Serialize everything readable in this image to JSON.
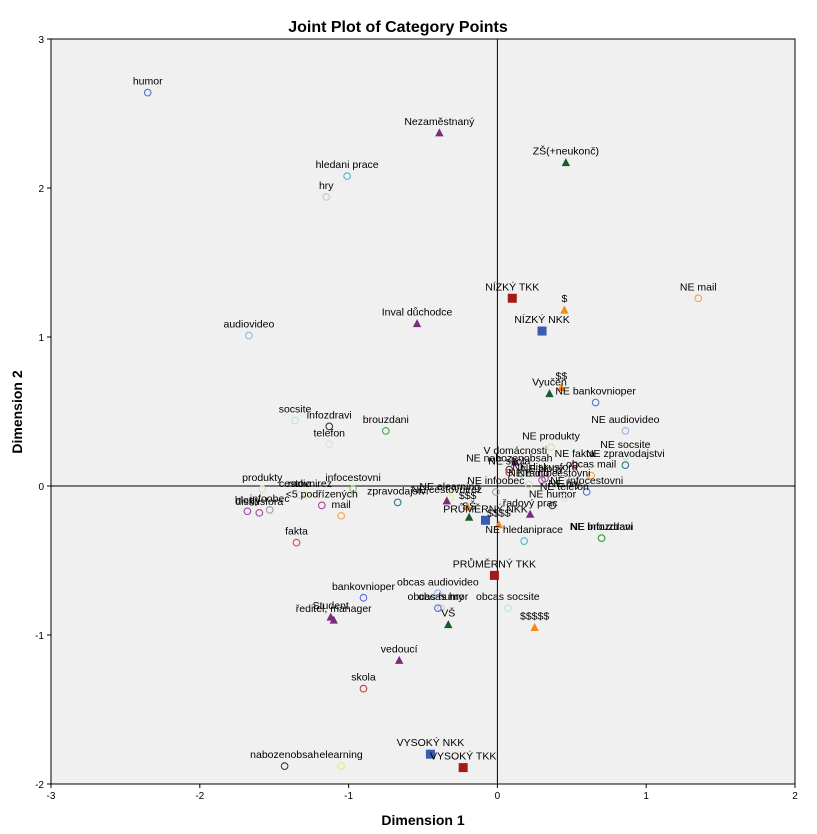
{
  "chart_data": {
    "type": "scatter",
    "title": "Joint Plot of Category Points",
    "xlabel": "Dimension 1",
    "ylabel": "Dimension 2",
    "xlim": [
      -3,
      2
    ],
    "ylim": [
      -2,
      3
    ],
    "xticks": [
      "-3",
      "-2",
      "-1",
      "0",
      "1",
      "2"
    ],
    "yticks": [
      "-2",
      "-1",
      "0",
      "1",
      "2",
      "3"
    ],
    "reference_lines": {
      "x": 0,
      "y": 0
    },
    "grid": false,
    "points": [
      {
        "label": "humor",
        "x": -2.35,
        "y": 2.64,
        "marker": "circle",
        "color": "#5a6bd9"
      },
      {
        "label": "Nezaměstnaný",
        "x": -0.39,
        "y": 2.37,
        "marker": "triangle",
        "color": "#7b2a7e"
      },
      {
        "label": "ZŠ(+neukonč)",
        "x": 0.46,
        "y": 2.17,
        "marker": "triangle",
        "color": "#1a5a2a"
      },
      {
        "label": "hledani prace",
        "x": -1.01,
        "y": 2.08,
        "marker": "circle",
        "color": "#4fb8c8"
      },
      {
        "label": "hry",
        "x": -1.15,
        "y": 1.94,
        "marker": "circle",
        "color": "#c8c8c8"
      },
      {
        "label": "NE mail",
        "x": 1.35,
        "y": 1.26,
        "marker": "circle",
        "color": "#f3a443"
      },
      {
        "label": "NÍZKÝ TKK",
        "x": 0.1,
        "y": 1.26,
        "marker": "square",
        "color": "#a31a1a"
      },
      {
        "label": "$",
        "x": 0.45,
        "y": 1.18,
        "marker": "triangle",
        "color": "#f28a1e"
      },
      {
        "label": "Inval důchodce",
        "x": -0.54,
        "y": 1.09,
        "marker": "triangle",
        "color": "#7b2a7e"
      },
      {
        "label": "NÍZKÝ NKK",
        "x": 0.3,
        "y": 1.04,
        "marker": "square",
        "color": "#3b5ab0"
      },
      {
        "label": "audiovideo",
        "x": -1.67,
        "y": 1.01,
        "marker": "circle",
        "color": "#8fb8e6"
      },
      {
        "label": "$$",
        "x": 0.43,
        "y": 0.66,
        "marker": "triangle",
        "color": "#f28a1e"
      },
      {
        "label": "Vyučen",
        "x": 0.35,
        "y": 0.62,
        "marker": "triangle",
        "color": "#1a5a2a"
      },
      {
        "label": "NE bankovnioper",
        "x": 0.66,
        "y": 0.56,
        "marker": "circle",
        "color": "#5a6bd9"
      },
      {
        "label": "socsite",
        "x": -1.36,
        "y": 0.44,
        "marker": "circle",
        "color": "#b8e6e0"
      },
      {
        "label": "infozdravi",
        "x": -1.13,
        "y": 0.4,
        "marker": "circle",
        "color": "#3a3a3a"
      },
      {
        "label": "brouzdani",
        "x": -0.75,
        "y": 0.37,
        "marker": "circle",
        "color": "#3fa84a"
      },
      {
        "label": "NE audiovideo",
        "x": 0.86,
        "y": 0.37,
        "marker": "circle",
        "color": "#8fb8e6"
      },
      {
        "label": "telefon",
        "x": -1.13,
        "y": 0.28,
        "marker": "circle",
        "color": "#d0e8d0"
      },
      {
        "label": "NE produkty",
        "x": 0.36,
        "y": 0.26,
        "marker": "circle",
        "color": "#c8e6b0"
      },
      {
        "label": "NE socsite",
        "x": 0.86,
        "y": 0.2,
        "marker": "circle",
        "color": "#b8e6e0"
      },
      {
        "label": "NE fakta",
        "x": 0.52,
        "y": 0.14,
        "marker": "circle",
        "color": "#d94a4a"
      },
      {
        "label": "NE zpravodajstvi",
        "x": 0.86,
        "y": 0.14,
        "marker": "circle",
        "color": "#2a7a8a"
      },
      {
        "label": "V domácnosti",
        "x": 0.12,
        "y": 0.16,
        "marker": "triangle",
        "color": "#7b2a7e"
      },
      {
        "label": "NE blogy",
        "x": 0.3,
        "y": 0.04,
        "marker": "circle",
        "color": "#a04aa0"
      },
      {
        "label": "NE diskusfora",
        "x": 0.32,
        "y": 0.05,
        "marker": "circle",
        "color": "#a04aa0"
      },
      {
        "label": "NE nabozenobsah",
        "x": 0.08,
        "y": 0.11,
        "marker": "circle",
        "color": "#3a3a3a"
      },
      {
        "label": "NE skola",
        "x": 0.08,
        "y": 0.09,
        "marker": "circle",
        "color": "#c04040"
      },
      {
        "label": "NE radio",
        "x": 0.21,
        "y": 0.01,
        "marker": "circle",
        "color": "#c8e6b0"
      },
      {
        "label": "obcas mail",
        "x": 0.63,
        "y": 0.07,
        "marker": "circle",
        "color": "#f3a443"
      },
      {
        "label": "NE infocestovni",
        "x": 0.38,
        "y": 0.01,
        "marker": "circle",
        "color": "#c8e6b0"
      },
      {
        "label": "produkty",
        "x": -1.58,
        "y": -0.02,
        "marker": "circle",
        "color": "#c8e6b0"
      },
      {
        "label": "cestovnirez",
        "x": -1.29,
        "y": -0.06,
        "marker": "circle",
        "color": "#e0e890"
      },
      {
        "label": "infocestovni",
        "x": -0.97,
        "y": -0.02,
        "marker": "circle",
        "color": "#8ac870"
      },
      {
        "label": "radio",
        "x": -1.33,
        "y": -0.06,
        "marker": "circle",
        "color": "#b8d8f0"
      },
      {
        "label": "diskusfora",
        "x": -1.6,
        "y": -0.18,
        "marker": "circle",
        "color": "#a04aa0"
      },
      {
        "label": "infoobec",
        "x": -1.53,
        "y": -0.16,
        "marker": "circle",
        "color": "#a0a0a0"
      },
      {
        "label": "NE infoobec",
        "x": -0.01,
        "y": -0.04,
        "marker": "circle",
        "color": "#a0a0a0"
      },
      {
        "label": "zpravodajstvi",
        "x": -0.67,
        "y": -0.11,
        "marker": "circle",
        "color": "#2a7a8a"
      },
      {
        "label": "NE elearning",
        "x": -0.32,
        "y": -0.08,
        "marker": "circle",
        "color": "#e8e890"
      },
      {
        "label": "NE cestovnirez",
        "x": -0.34,
        "y": -0.1,
        "marker": "triangle",
        "color": "#7b2a7e"
      },
      {
        "label": "NE hry",
        "x": 0.45,
        "y": -0.06,
        "marker": "circle",
        "color": "#c8c8c8"
      },
      {
        "label": "NE infocestovni",
        "x": 0.6,
        "y": -0.04,
        "marker": "circle",
        "color": "#5a6bd9"
      },
      {
        "label": "NE humor",
        "x": 0.37,
        "y": -0.13,
        "marker": "circle",
        "color": "#3a3a3a"
      },
      {
        "label": "blogy",
        "x": -1.68,
        "y": -0.17,
        "marker": "circle",
        "color": "#a04aa0"
      },
      {
        "label": "fakta",
        "x": -1.35,
        "y": -0.38,
        "marker": "circle",
        "color": "#d94a4a"
      },
      {
        "label": "mail",
        "x": -1.05,
        "y": -0.2,
        "marker": "circle",
        "color": "#f3a443"
      },
      {
        "label": "<5 podřízených",
        "x": -1.18,
        "y": -0.13,
        "marker": "circle",
        "color": "#a04aa0"
      },
      {
        "label": "SŠ",
        "x": -0.19,
        "y": -0.21,
        "marker": "triangle",
        "color": "#1a5a2a"
      },
      {
        "label": "$$$",
        "x": -0.2,
        "y": -0.14,
        "marker": "triangle",
        "color": "#f28a1e"
      },
      {
        "label": "PRŮMĚRNÝ NKK",
        "x": -0.08,
        "y": -0.23,
        "marker": "square",
        "color": "#3b5ab0"
      },
      {
        "label": "řadový prac",
        "x": 0.22,
        "y": -0.19,
        "marker": "triangle",
        "color": "#7b2a7e"
      },
      {
        "label": "NE telefon",
        "x": 0.45,
        "y": -0.08,
        "marker": "circle",
        "color": "#d0e8d0"
      },
      {
        "label": "$$$$",
        "x": 0.01,
        "y": -0.26,
        "marker": "triangle",
        "color": "#f28a1e"
      },
      {
        "label": "NE infozdravi",
        "x": 0.7,
        "y": -0.35,
        "marker": "circle",
        "color": "#3fa84a"
      },
      {
        "label": "NE hledaniprace",
        "x": 0.18,
        "y": -0.37,
        "marker": "circle",
        "color": "#4fb8c8"
      },
      {
        "label": "NE brouzdani",
        "x": 0.7,
        "y": -0.35,
        "marker": "circle",
        "color": "#3fa84a"
      },
      {
        "label": "PRŮMĚRNÝ TKK",
        "x": -0.02,
        "y": -0.6,
        "marker": "square",
        "color": "#a31a1a"
      },
      {
        "label": "bankovnioper",
        "x": -0.9,
        "y": -0.75,
        "marker": "circle",
        "color": "#5a6bd9"
      },
      {
        "label": "obcas audiovideo",
        "x": -0.4,
        "y": -0.72,
        "marker": "circle",
        "color": "#8fb8e6"
      },
      {
        "label": "obcas hry",
        "x": -0.38,
        "y": -0.82,
        "marker": "circle",
        "color": "#c8c8c8"
      },
      {
        "label": "obcas humor",
        "x": -0.4,
        "y": -0.82,
        "marker": "circle",
        "color": "#5a6bd9"
      },
      {
        "label": "obcas socsite",
        "x": 0.07,
        "y": -0.82,
        "marker": "circle",
        "color": "#b8e6e0"
      },
      {
        "label": "Student",
        "x": -1.12,
        "y": -0.88,
        "marker": "triangle",
        "color": "#7b2a7e"
      },
      {
        "label": "ředitel, manager",
        "x": -1.1,
        "y": -0.9,
        "marker": "triangle",
        "color": "#7b2a7e"
      },
      {
        "label": "VŠ",
        "x": -0.33,
        "y": -0.93,
        "marker": "triangle",
        "color": "#1a5a2a"
      },
      {
        "label": "$$$$$",
        "x": 0.25,
        "y": -0.95,
        "marker": "triangle",
        "color": "#f28a1e"
      },
      {
        "label": "vedoucí",
        "x": -0.66,
        "y": -1.17,
        "marker": "triangle",
        "color": "#7b2a7e"
      },
      {
        "label": "skola",
        "x": -0.9,
        "y": -1.36,
        "marker": "circle",
        "color": "#c04040"
      },
      {
        "label": "VYSOKÝ NKK",
        "x": -0.45,
        "y": -1.8,
        "marker": "square",
        "color": "#3b5ab0"
      },
      {
        "label": "VYSOKÝ TKK",
        "x": -0.23,
        "y": -1.89,
        "marker": "square",
        "color": "#a31a1a"
      },
      {
        "label": "nabozenobsah",
        "x": -1.43,
        "y": -1.88,
        "marker": "circle",
        "color": "#3a3a3a"
      },
      {
        "label": "elearning",
        "x": -1.05,
        "y": -1.88,
        "marker": "circle",
        "color": "#e8e890"
      }
    ]
  }
}
